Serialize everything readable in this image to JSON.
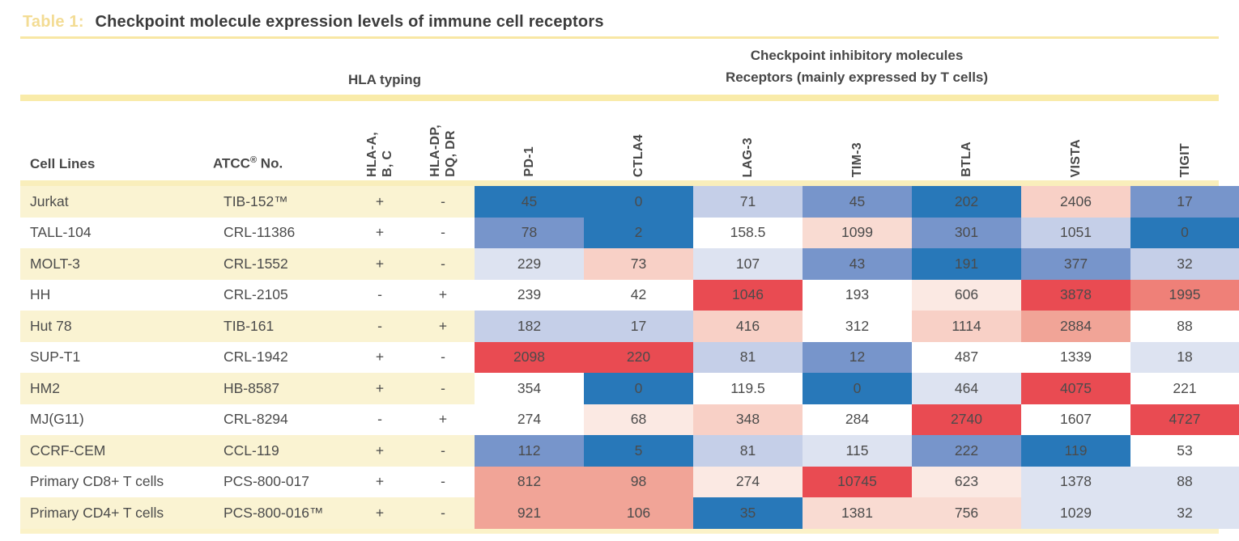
{
  "title": {
    "label": "Table 1:",
    "text": "Checkpoint molecule expression levels of immune cell receptors"
  },
  "groups": {
    "hla": "HLA typing",
    "checkpoint_line1": "Checkpoint inhibitory molecules",
    "checkpoint_line2": "Receptors (mainly expressed by T cells)"
  },
  "columns": {
    "cell_lines": "Cell Lines",
    "atcc_prefix": "ATCC",
    "atcc_sup": "®",
    "atcc_suffix": " No.",
    "hla_abc": "HLA-A,\nB, C",
    "hla_dpdqdr": "HLA-DP,\nDQ, DR",
    "receptors": [
      "PD-1",
      "CTLA4",
      "LAG-3",
      "TIM-3",
      "BTLA",
      "VISTA",
      "TIGIT"
    ]
  },
  "palette": {
    "b1": "#2878b9",
    "b2": "#7795cb",
    "b3": "#c5cfe8",
    "b4": "#dde3f1",
    "w": "#ffffff",
    "p1": "#fbe9e3",
    "p15": "#f9dbd2",
    "p2": "#f8d0c6",
    "p3": "#f1a497",
    "p4": "#ef8078",
    "r": "#e94b52",
    "row_yellow": "#faf3d2",
    "row_white": "#ffffff"
  },
  "rows": [
    {
      "cell_line": "Jurkat",
      "atcc": "TIB-152™",
      "hla_abc": "+",
      "hla_dpdqdr": "-",
      "row_bg": "yellow",
      "values": [
        "45",
        "0",
        "71",
        "45",
        "202",
        "2406",
        "17"
      ],
      "cell_colors": [
        "b1",
        "b1",
        "b3",
        "b2",
        "b1",
        "p2",
        "b2"
      ]
    },
    {
      "cell_line": "TALL-104",
      "atcc": "CRL-11386",
      "hla_abc": "+",
      "hla_dpdqdr": "-",
      "row_bg": "white",
      "values": [
        "78",
        "2",
        "158.5",
        "1099",
        "301",
        "1051",
        "0"
      ],
      "cell_colors": [
        "b2",
        "b1",
        "w",
        "p15",
        "b2",
        "b3",
        "b1"
      ]
    },
    {
      "cell_line": "MOLT-3",
      "atcc": "CRL-1552",
      "hla_abc": "+",
      "hla_dpdqdr": "-",
      "row_bg": "yellow",
      "values": [
        "229",
        "73",
        "107",
        "43",
        "191",
        "377",
        "32"
      ],
      "cell_colors": [
        "b4",
        "p2",
        "b4",
        "b2",
        "b1",
        "b2",
        "b3"
      ]
    },
    {
      "cell_line": "HH",
      "atcc": "CRL-2105",
      "hla_abc": "-",
      "hla_dpdqdr": "+",
      "row_bg": "white",
      "values": [
        "239",
        "42",
        "1046",
        "193",
        "606",
        "3878",
        "1995"
      ],
      "cell_colors": [
        "w",
        "w",
        "r",
        "w",
        "p1",
        "r",
        "p4"
      ]
    },
    {
      "cell_line": "Hut 78",
      "atcc": "TIB-161",
      "hla_abc": "-",
      "hla_dpdqdr": "+",
      "row_bg": "yellow",
      "values": [
        "182",
        "17",
        "416",
        "312",
        "1114",
        "2884",
        "88"
      ],
      "cell_colors": [
        "b3",
        "b3",
        "p2",
        "w",
        "p2",
        "p3",
        "w"
      ]
    },
    {
      "cell_line": "SUP-T1",
      "atcc": "CRL-1942",
      "hla_abc": "+",
      "hla_dpdqdr": "-",
      "row_bg": "white",
      "values": [
        "2098",
        "220",
        "81",
        "12",
        "487",
        "1339",
        "18"
      ],
      "cell_colors": [
        "r",
        "r",
        "b3",
        "b2",
        "w",
        "w",
        "b4"
      ]
    },
    {
      "cell_line": "HM2",
      "atcc": "HB-8587",
      "hla_abc": "+",
      "hla_dpdqdr": "-",
      "row_bg": "yellow",
      "values": [
        "354",
        "0",
        "119.5",
        "0",
        "464",
        "4075",
        "221"
      ],
      "cell_colors": [
        "w",
        "b1",
        "w",
        "b1",
        "b4",
        "r",
        "w"
      ]
    },
    {
      "cell_line": "MJ(G11)",
      "atcc": "CRL-8294",
      "hla_abc": "-",
      "hla_dpdqdr": "+",
      "row_bg": "white",
      "values": [
        "274",
        "68",
        "348",
        "284",
        "2740",
        "1607",
        "4727"
      ],
      "cell_colors": [
        "w",
        "p1",
        "p2",
        "w",
        "r",
        "w",
        "r"
      ]
    },
    {
      "cell_line": "CCRF-CEM",
      "atcc": "CCL-119",
      "hla_abc": "+",
      "hla_dpdqdr": "-",
      "row_bg": "yellow",
      "values": [
        "112",
        "5",
        "81",
        "115",
        "222",
        "119",
        "53"
      ],
      "cell_colors": [
        "b2",
        "b1",
        "b3",
        "b4",
        "b2",
        "b1",
        "w"
      ]
    },
    {
      "cell_line": "Primary CD8+ T cells",
      "atcc": "PCS-800-017",
      "hla_abc": "+",
      "hla_dpdqdr": "-",
      "row_bg": "white",
      "values": [
        "812",
        "98",
        "274",
        "10745",
        "623",
        "1378",
        "88"
      ],
      "cell_colors": [
        "p3",
        "p3",
        "p1",
        "r",
        "p1",
        "b4",
        "b4"
      ]
    },
    {
      "cell_line": "Primary CD4+ T cells",
      "atcc": "PCS-800-016™",
      "hla_abc": "+",
      "hla_dpdqdr": "-",
      "row_bg": "yellow",
      "values": [
        "921",
        "106",
        "35",
        "1381",
        "756",
        "1029",
        "32"
      ],
      "cell_colors": [
        "p3",
        "p3",
        "b1",
        "p15",
        "p15",
        "b4",
        "b4"
      ]
    }
  ]
}
